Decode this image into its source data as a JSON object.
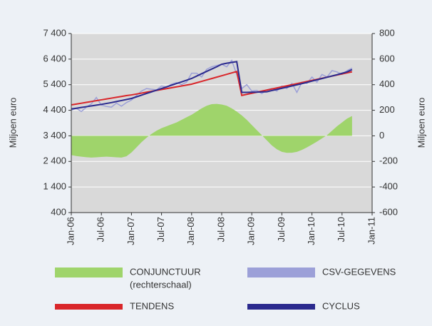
{
  "chart_data": {
    "type": "line",
    "x": [
      "2006-01",
      "2006-02",
      "2006-03",
      "2006-04",
      "2006-05",
      "2006-06",
      "2006-07",
      "2006-08",
      "2006-09",
      "2006-10",
      "2006-11",
      "2006-12",
      "2007-01",
      "2007-02",
      "2007-03",
      "2007-04",
      "2007-05",
      "2007-06",
      "2007-07",
      "2007-08",
      "2007-09",
      "2007-10",
      "2007-11",
      "2007-12",
      "2008-01",
      "2008-02",
      "2008-03",
      "2008-04",
      "2008-05",
      "2008-06",
      "2008-07",
      "2008-08",
      "2008-09",
      "2008-10",
      "2008-11",
      "2008-12",
      "2009-01",
      "2009-02",
      "2009-03",
      "2009-04",
      "2009-05",
      "2009-06",
      "2009-07",
      "2009-08",
      "2009-09",
      "2009-10",
      "2009-11",
      "2009-12",
      "2010-01",
      "2010-02",
      "2010-03",
      "2010-04",
      "2010-05",
      "2010-06",
      "2010-07",
      "2010-08",
      "2010-09"
    ],
    "xlim": [
      "2006-01",
      "2011-01"
    ],
    "xticks": [
      {
        "value": "2006-01",
        "label": "Jan-06"
      },
      {
        "value": "2006-07",
        "label": "Jul-06"
      },
      {
        "value": "2007-01",
        "label": "Jan-07"
      },
      {
        "value": "2007-07",
        "label": "Jul-07"
      },
      {
        "value": "2008-01",
        "label": "Jan-08"
      },
      {
        "value": "2008-07",
        "label": "Jul-08"
      },
      {
        "value": "2009-01",
        "label": "Jan-09"
      },
      {
        "value": "2009-07",
        "label": "Jul-09"
      },
      {
        "value": "2010-01",
        "label": "Jan-10"
      },
      {
        "value": "2010-07",
        "label": "Jul-10"
      },
      {
        "value": "2011-01",
        "label": "Jan-11"
      }
    ],
    "ylabel": "Miljoen euro",
    "y2label": "Miljoen euro",
    "ylim": [
      400,
      7400
    ],
    "yticks": [
      {
        "value": 400,
        "label": "400"
      },
      {
        "value": 1400,
        "label": "1 400"
      },
      {
        "value": 2400,
        "label": "2 400"
      },
      {
        "value": 3400,
        "label": "3 400"
      },
      {
        "value": 4400,
        "label": "4 400"
      },
      {
        "value": 5400,
        "label": "5 400"
      },
      {
        "value": 6400,
        "label": "6 400"
      },
      {
        "value": 7400,
        "label": "7 400"
      }
    ],
    "y2lim": [
      -600,
      800
    ],
    "y2ticks": [
      -600,
      -400,
      -200,
      0,
      200,
      400,
      600,
      800
    ],
    "grid": true,
    "series": [
      {
        "name": "CONJUNCTUUR",
        "legend_note": "(rechterschaal)",
        "kind": "area",
        "axis": "y2",
        "color": "#9fd46b",
        "values": [
          -150,
          -158,
          -163,
          -167,
          -170,
          -168,
          -165,
          -163,
          -165,
          -168,
          -170,
          -160,
          -130,
          -90,
          -50,
          -15,
          15,
          40,
          60,
          75,
          90,
          105,
          125,
          145,
          165,
          190,
          215,
          235,
          248,
          250,
          245,
          235,
          215,
          190,
          160,
          125,
          85,
          45,
          5,
          -35,
          -75,
          -105,
          -125,
          -133,
          -132,
          -125,
          -110,
          -90,
          -68,
          -45,
          -20,
          5,
          40,
          75,
          105,
          135,
          155
        ]
      },
      {
        "name": "CSV-GEGEVENS",
        "kind": "line",
        "color": "#9ca0d8",
        "values": [
          4400,
          4480,
          4350,
          4520,
          4650,
          4900,
          4600,
          4550,
          4520,
          4680,
          4560,
          4700,
          4800,
          4980,
          5150,
          5250,
          5220,
          5200,
          5350,
          5300,
          5420,
          5480,
          5400,
          5500,
          5850,
          5850,
          5700,
          6000,
          6100,
          6150,
          6200,
          6100,
          6350,
          5800,
          5250,
          5400,
          5150,
          5180,
          5050,
          5200,
          5250,
          5150,
          5350,
          5250,
          5450,
          5100,
          5500,
          5450,
          5700,
          5500,
          5800,
          5700,
          5950,
          5900,
          5800,
          5950,
          6050
        ]
      },
      {
        "name": "TENDENS",
        "kind": "line",
        "color": "#d9262a",
        "values": [
          4610,
          4643,
          4676,
          4709,
          4742,
          4775,
          4808,
          4841,
          4874,
          4907,
          4940,
          4973,
          5000,
          5035,
          5070,
          5105,
          5140,
          5175,
          5210,
          5245,
          5280,
          5315,
          5350,
          5385,
          5420,
          5475,
          5530,
          5585,
          5640,
          5695,
          5750,
          5805,
          5860,
          5915,
          4980,
          5022,
          5064,
          5106,
          5148,
          5190,
          5232,
          5274,
          5316,
          5358,
          5400,
          5442,
          5484,
          5526,
          5568,
          5610,
          5652,
          5694,
          5736,
          5778,
          5820,
          5862,
          5904
        ]
      },
      {
        "name": "CYCLUS",
        "kind": "line",
        "color": "#2b2a8e",
        "values": [
          4450,
          4480,
          4510,
          4540,
          4570,
          4600,
          4630,
          4665,
          4700,
          4740,
          4780,
          4820,
          4862,
          4925,
          4990,
          5055,
          5120,
          5185,
          5250,
          5315,
          5380,
          5445,
          5510,
          5575,
          5643,
          5735,
          5830,
          5920,
          6010,
          6100,
          6200,
          6240,
          6270,
          6300,
          5100,
          5100,
          5105,
          5110,
          5115,
          5125,
          5170,
          5215,
          5260,
          5305,
          5350,
          5395,
          5440,
          5490,
          5540,
          5590,
          5640,
          5690,
          5740,
          5790,
          5845,
          5900,
          5990
        ]
      }
    ]
  }
}
